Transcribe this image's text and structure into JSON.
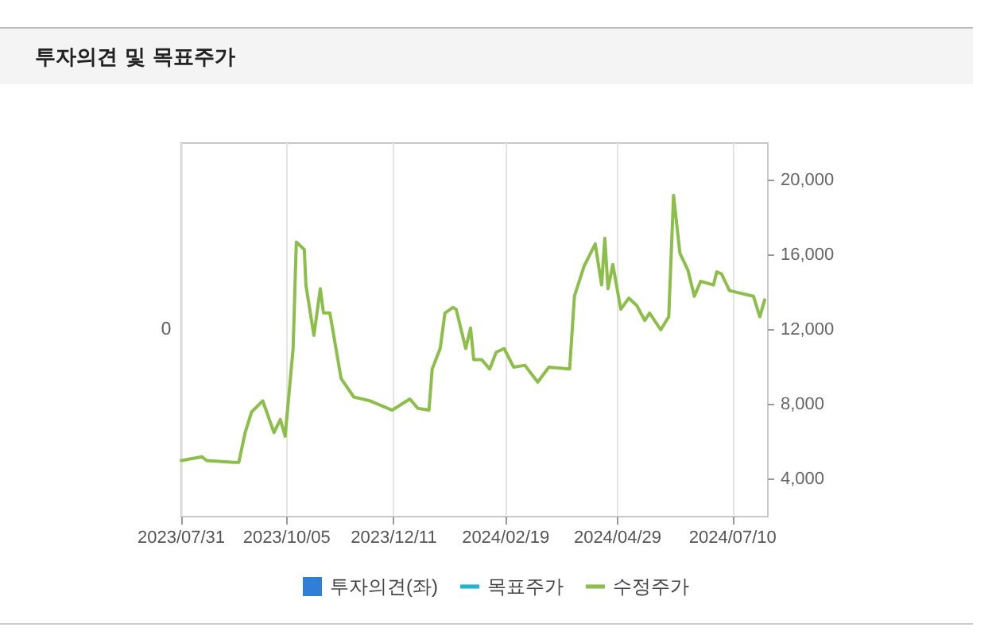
{
  "chart_data": {
    "type": "line",
    "title": "투자의견 및 목표주가",
    "xlim": [
      "2023-07-31",
      "2024-08-01"
    ],
    "xticks": [
      {
        "value": "2023-07-31",
        "label": "2023/07/31"
      },
      {
        "value": "2023-10-05",
        "label": "2023/10/05"
      },
      {
        "value": "2023-12-11",
        "label": "2023/12/11"
      },
      {
        "value": "2024-02-19",
        "label": "2024/02/19"
      },
      {
        "value": "2024-04-29",
        "label": "2024/04/29"
      },
      {
        "value": "2024-07-10",
        "label": "2024/07/10"
      }
    ],
    "annotations": [
      "0"
    ],
    "y2lim": [
      2000,
      22000
    ],
    "y2ticks": [
      {
        "value": 4000,
        "label": "4,000"
      },
      {
        "value": 8000,
        "label": "8,000"
      },
      {
        "value": 12000,
        "label": "12,000"
      },
      {
        "value": 16000,
        "label": "16,000"
      },
      {
        "value": 20000,
        "label": "20,000"
      }
    ],
    "grid": "x",
    "legend": "bottom",
    "marker": "none",
    "line_style": "solid",
    "series": [
      {
        "name": "투자의견(좌)",
        "type": "bar",
        "color": "#2f7ed8"
      },
      {
        "name": "목표주가",
        "type": "line",
        "axis": "y2",
        "color": "#1fb4d2"
      },
      {
        "name": "수정주가",
        "axis": "y2",
        "color": "#8cbf4a",
        "x": [
          "2023-07-31",
          "2023-08-13",
          "2023-08-16",
          "2023-09-02",
          "2023-09-05",
          "2023-09-09",
          "2023-09-13",
          "2023-09-20",
          "2023-09-27",
          "2023-10-01",
          "2023-10-04",
          "2023-10-09",
          "2023-10-11",
          "2023-10-16",
          "2023-10-17",
          "2023-10-22",
          "2023-10-26",
          "2023-10-28",
          "2023-11-01",
          "2023-11-08",
          "2023-11-16",
          "2023-11-26",
          "2023-12-10",
          "2023-12-21",
          "2023-12-26",
          "2024-01-02",
          "2024-01-04",
          "2024-01-09",
          "2024-01-12",
          "2024-01-17",
          "2024-01-19",
          "2024-01-25",
          "2024-01-28",
          "2024-01-30",
          "2024-02-04",
          "2024-02-09",
          "2024-02-13",
          "2024-02-18",
          "2024-02-24",
          "2024-03-02",
          "2024-03-10",
          "2024-03-17",
          "2024-03-30",
          "2024-04-02",
          "2024-04-08",
          "2024-04-15",
          "2024-04-19",
          "2024-04-21",
          "2024-04-23",
          "2024-04-26",
          "2024-05-01",
          "2024-05-06",
          "2024-05-11",
          "2024-05-16",
          "2024-05-19",
          "2024-05-26",
          "2024-05-31",
          "2024-06-03",
          "2024-06-07",
          "2024-06-12",
          "2024-06-16",
          "2024-06-20",
          "2024-06-28",
          "2024-06-30",
          "2024-07-03",
          "2024-07-08",
          "2024-07-23",
          "2024-07-27",
          "2024-07-30"
        ],
        "values": [
          5000,
          5200,
          5000,
          4900,
          4900,
          6500,
          7600,
          8200,
          6500,
          7200,
          6300,
          11000,
          16700,
          16300,
          14400,
          11700,
          14200,
          12900,
          12900,
          9400,
          8400,
          8200,
          7700,
          8300,
          7800,
          7700,
          9900,
          11000,
          12900,
          13200,
          13100,
          11000,
          12100,
          10400,
          10400,
          9900,
          10800,
          11000,
          10000,
          10100,
          9200,
          10000,
          9900,
          13800,
          15400,
          16600,
          14400,
          16900,
          14200,
          15500,
          13100,
          13700,
          13300,
          12500,
          12900,
          12000,
          12700,
          19200,
          16100,
          15200,
          13800,
          14600,
          14400,
          15100,
          15000,
          14100,
          13800,
          12700,
          13600
        ]
      }
    ]
  }
}
